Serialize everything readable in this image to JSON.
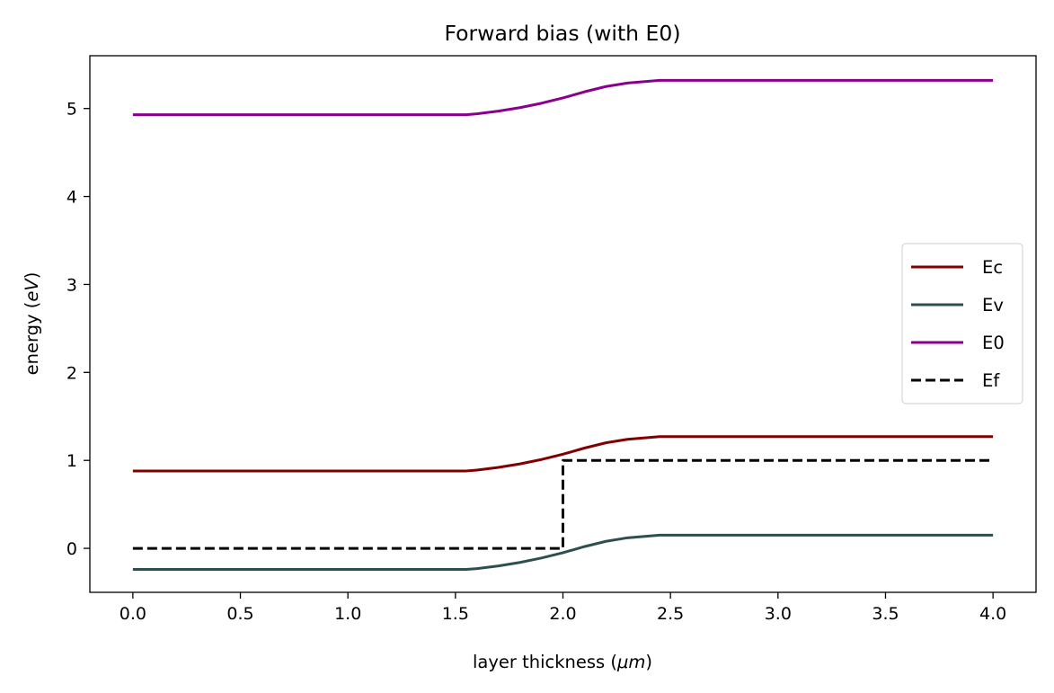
{
  "chart_data": {
    "type": "line",
    "title": "Forward bias (with E0)",
    "xlabel": "layer thickness (μm)",
    "xlabel_plain": "layer thickness (",
    "xlabel_italic": "μm",
    "xlabel_close": ")",
    "ylabel_plain": "energy (",
    "ylabel_italic": "eV",
    "ylabel_close": ")",
    "xlim": [
      -0.2,
      4.2
    ],
    "ylim": [
      -0.5,
      5.6
    ],
    "xticks": [
      0.0,
      0.5,
      1.0,
      1.5,
      2.0,
      2.5,
      3.0,
      3.5,
      4.0
    ],
    "xtick_labels": [
      "0.0",
      "0.5",
      "1.0",
      "1.5",
      "2.0",
      "2.5",
      "3.0",
      "3.5",
      "4.0"
    ],
    "yticks": [
      0,
      1,
      2,
      3,
      4,
      5
    ],
    "ytick_labels": [
      "0",
      "1",
      "2",
      "3",
      "4",
      "5"
    ],
    "grid": false,
    "legend_position": "center-right",
    "series": [
      {
        "name": "Ec",
        "color": "#800000",
        "dash": "solid",
        "x": [
          0.0,
          1.0,
          1.5,
          1.55,
          1.6,
          1.7,
          1.8,
          1.9,
          2.0,
          2.1,
          2.2,
          2.3,
          2.4,
          2.45,
          2.5,
          3.0,
          4.0
        ],
        "y": [
          0.88,
          0.88,
          0.88,
          0.88,
          0.89,
          0.92,
          0.96,
          1.01,
          1.07,
          1.14,
          1.2,
          1.24,
          1.26,
          1.27,
          1.27,
          1.27,
          1.27
        ]
      },
      {
        "name": "Ev",
        "color": "#2f4f4f",
        "dash": "solid",
        "x": [
          0.0,
          1.0,
          1.5,
          1.55,
          1.6,
          1.7,
          1.8,
          1.9,
          2.0,
          2.1,
          2.2,
          2.3,
          2.4,
          2.45,
          2.5,
          3.0,
          4.0
        ],
        "y": [
          -0.24,
          -0.24,
          -0.24,
          -0.24,
          -0.23,
          -0.2,
          -0.16,
          -0.11,
          -0.05,
          0.02,
          0.08,
          0.12,
          0.14,
          0.15,
          0.15,
          0.15,
          0.15
        ]
      },
      {
        "name": "E0",
        "color": "#8b008b",
        "dash": "solid",
        "x": [
          0.0,
          1.0,
          1.5,
          1.55,
          1.6,
          1.7,
          1.8,
          1.9,
          2.0,
          2.1,
          2.2,
          2.3,
          2.4,
          2.45,
          2.5,
          3.0,
          4.0
        ],
        "y": [
          4.93,
          4.93,
          4.93,
          4.93,
          4.94,
          4.97,
          5.01,
          5.06,
          5.12,
          5.19,
          5.25,
          5.29,
          5.31,
          5.32,
          5.32,
          5.32,
          5.32
        ]
      },
      {
        "name": "Ef",
        "color": "#000000",
        "dash": "dashed",
        "x": [
          0.0,
          2.0,
          2.0,
          4.0
        ],
        "y": [
          0.0,
          0.0,
          1.0,
          1.0
        ]
      }
    ]
  }
}
